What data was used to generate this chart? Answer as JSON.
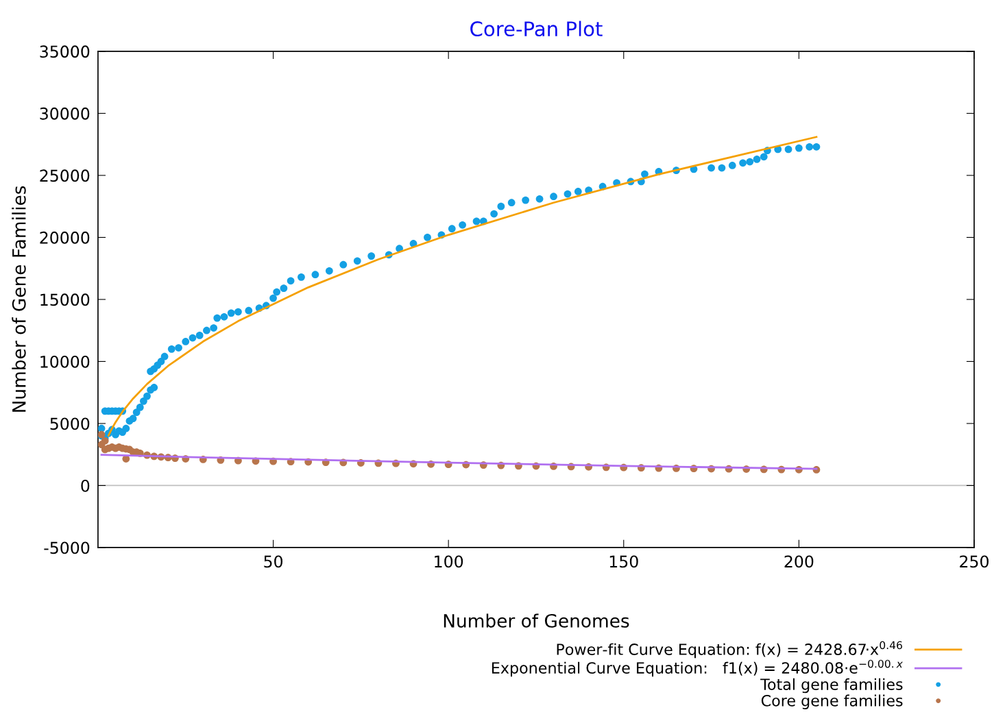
{
  "chart_data": {
    "type": "scatter",
    "title": "Core-Pan Plot",
    "xlabel": "Number of Genomes",
    "ylabel": "Number of Gene Families",
    "xlim": [
      0,
      250
    ],
    "xticks": [
      50,
      100,
      150,
      200,
      250
    ],
    "ylim": [
      -5000,
      35000
    ],
    "yticks": [
      -5000,
      0,
      5000,
      10000,
      15000,
      20000,
      25000,
      30000,
      35000
    ],
    "grid": false,
    "legend": "bottom right",
    "ref_lines": [
      {
        "axis": "y",
        "value": 0,
        "color": "#c0c0c0"
      }
    ],
    "series": [
      {
        "name": "Power-fit Curve Equation: f(x) = 2428.67·x$^{0.46}$",
        "type": "line",
        "color": "#f5a000",
        "line_style": "solid",
        "x": [
          3,
          4,
          5,
          7,
          10,
          14,
          20,
          30,
          40,
          60,
          80,
          100,
          130,
          160,
          205
        ],
        "values": [
          4030,
          4600,
          5090,
          5950,
          7000,
          8180,
          9640,
          11610,
          13250,
          15970,
          18230,
          20200,
          22800,
          25090,
          28100
        ]
      },
      {
        "name": "Exponential Curve Equation:   f1(x) = 2480.08·e$^{−0.00.x}$",
        "type": "line",
        "color": "#b070f0",
        "line_style": "solid",
        "x": [
          1,
          25,
          50,
          100,
          150,
          205
        ],
        "values": [
          2470,
          2300,
          2140,
          1840,
          1580,
          1340
        ]
      },
      {
        "name": "Total gene families",
        "marker": "circle",
        "color": "#14a0e4",
        "x": [
          1,
          1,
          2,
          2,
          3,
          3,
          4,
          4,
          5,
          5,
          6,
          6,
          7,
          7,
          8,
          9,
          10,
          11,
          12,
          13,
          14,
          15,
          15,
          16,
          16,
          17,
          18,
          19,
          21,
          23,
          25,
          27,
          29,
          31,
          33,
          34,
          36,
          38,
          40,
          43,
          46,
          48,
          50,
          51,
          53,
          55,
          58,
          62,
          66,
          70,
          74,
          78,
          83,
          86,
          90,
          94,
          98,
          101,
          104,
          108,
          110,
          113,
          115,
          118,
          122,
          126,
          130,
          134,
          137,
          140,
          144,
          148,
          152,
          155,
          156,
          160,
          165,
          170,
          175,
          178,
          181,
          184,
          186,
          188,
          190,
          191,
          194,
          197,
          200,
          203,
          205
        ],
        "values": [
          4000,
          4600,
          3800,
          6000,
          4200,
          6000,
          4500,
          6000,
          4100,
          6000,
          4400,
          6000,
          4300,
          6000,
          4600,
          5200,
          5400,
          5900,
          6300,
          6800,
          7200,
          7700,
          9200,
          9400,
          7900,
          9700,
          10000,
          10400,
          11000,
          11100,
          11600,
          11900,
          12100,
          12500,
          12700,
          13500,
          13600,
          13900,
          14000,
          14100,
          14300,
          14500,
          15100,
          15600,
          15900,
          16500,
          16800,
          17000,
          17300,
          17800,
          18100,
          18500,
          18600,
          19100,
          19500,
          20000,
          20200,
          20700,
          21000,
          21300,
          21300,
          21900,
          22500,
          22800,
          23000,
          23100,
          23300,
          23500,
          23700,
          23800,
          24100,
          24400,
          24500,
          24500,
          25100,
          25300,
          25400,
          25500,
          25600,
          25600,
          25800,
          26000,
          26100,
          26300,
          26500,
          27000,
          27100,
          27100,
          27200,
          27300,
          27300
        ]
      },
      {
        "name": "Core gene families",
        "marker": "circle",
        "color": "#b8754c",
        "x": [
          1,
          1,
          2,
          2,
          3,
          4,
          5,
          6,
          7,
          8,
          8,
          9,
          10,
          11,
          12,
          14,
          16,
          18,
          20,
          22,
          25,
          30,
          35,
          40,
          45,
          50,
          55,
          60,
          65,
          70,
          75,
          80,
          85,
          90,
          95,
          100,
          105,
          110,
          115,
          120,
          125,
          130,
          135,
          140,
          145,
          150,
          155,
          160,
          165,
          170,
          175,
          180,
          185,
          190,
          195,
          200,
          205
        ],
        "values": [
          4100,
          3300,
          3600,
          2900,
          3000,
          3100,
          3000,
          3100,
          3000,
          2950,
          2150,
          2900,
          2700,
          2700,
          2600,
          2450,
          2350,
          2300,
          2250,
          2200,
          2150,
          2100,
          2050,
          2000,
          1970,
          1950,
          1920,
          1900,
          1870,
          1850,
          1820,
          1800,
          1780,
          1750,
          1720,
          1700,
          1680,
          1650,
          1620,
          1580,
          1570,
          1550,
          1520,
          1500,
          1470,
          1450,
          1420,
          1400,
          1380,
          1370,
          1350,
          1340,
          1320,
          1300,
          1290,
          1280,
          1270
        ]
      }
    ]
  }
}
